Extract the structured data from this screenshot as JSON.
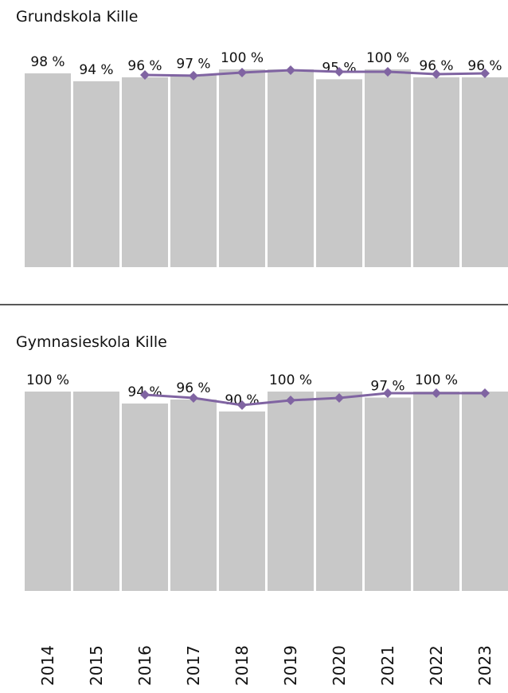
{
  "chart_data": [
    {
      "type": "bar",
      "title": "Grundskola Kille",
      "ylim": [
        0,
        100
      ],
      "series": [
        {
          "type": "bar",
          "color": "#c8c8c8",
          "values": [
            98,
            94,
            96,
            97,
            100,
            100,
            95,
            100,
            96,
            96
          ],
          "value_labels": [
            "98 %",
            "94 %",
            "96 %",
            "97 %",
            "100 %",
            null,
            "95 %",
            "100 %",
            "96 %",
            "96 %"
          ]
        },
        {
          "type": "line",
          "color": "#8064a2",
          "values": [
            null,
            null,
            97.2,
            96.8,
            98.4,
            99.6,
            98.8,
            98.8,
            97.6,
            98
          ]
        }
      ]
    },
    {
      "type": "bar",
      "title": "Gymnasieskola Kille",
      "ylim": [
        0,
        100
      ],
      "categories": [
        "2014",
        "2015",
        "2016",
        "2017",
        "2018",
        "2019",
        "2020",
        "2021",
        "2022",
        "2023"
      ],
      "series": [
        {
          "type": "bar",
          "color": "#c8c8c8",
          "values": [
            100,
            100,
            94,
            96,
            90,
            100,
            100,
            97,
            100,
            100
          ],
          "value_labels": [
            "100 %",
            null,
            "94 %",
            "96 %",
            "90 %",
            "100 %",
            null,
            "97 %",
            "100 %",
            null
          ]
        },
        {
          "type": "line",
          "color": "#8064a2",
          "values": [
            null,
            null,
            98.4,
            96.8,
            93.2,
            95.6,
            96.8,
            99.2,
            99.2,
            99.2
          ]
        }
      ]
    }
  ]
}
